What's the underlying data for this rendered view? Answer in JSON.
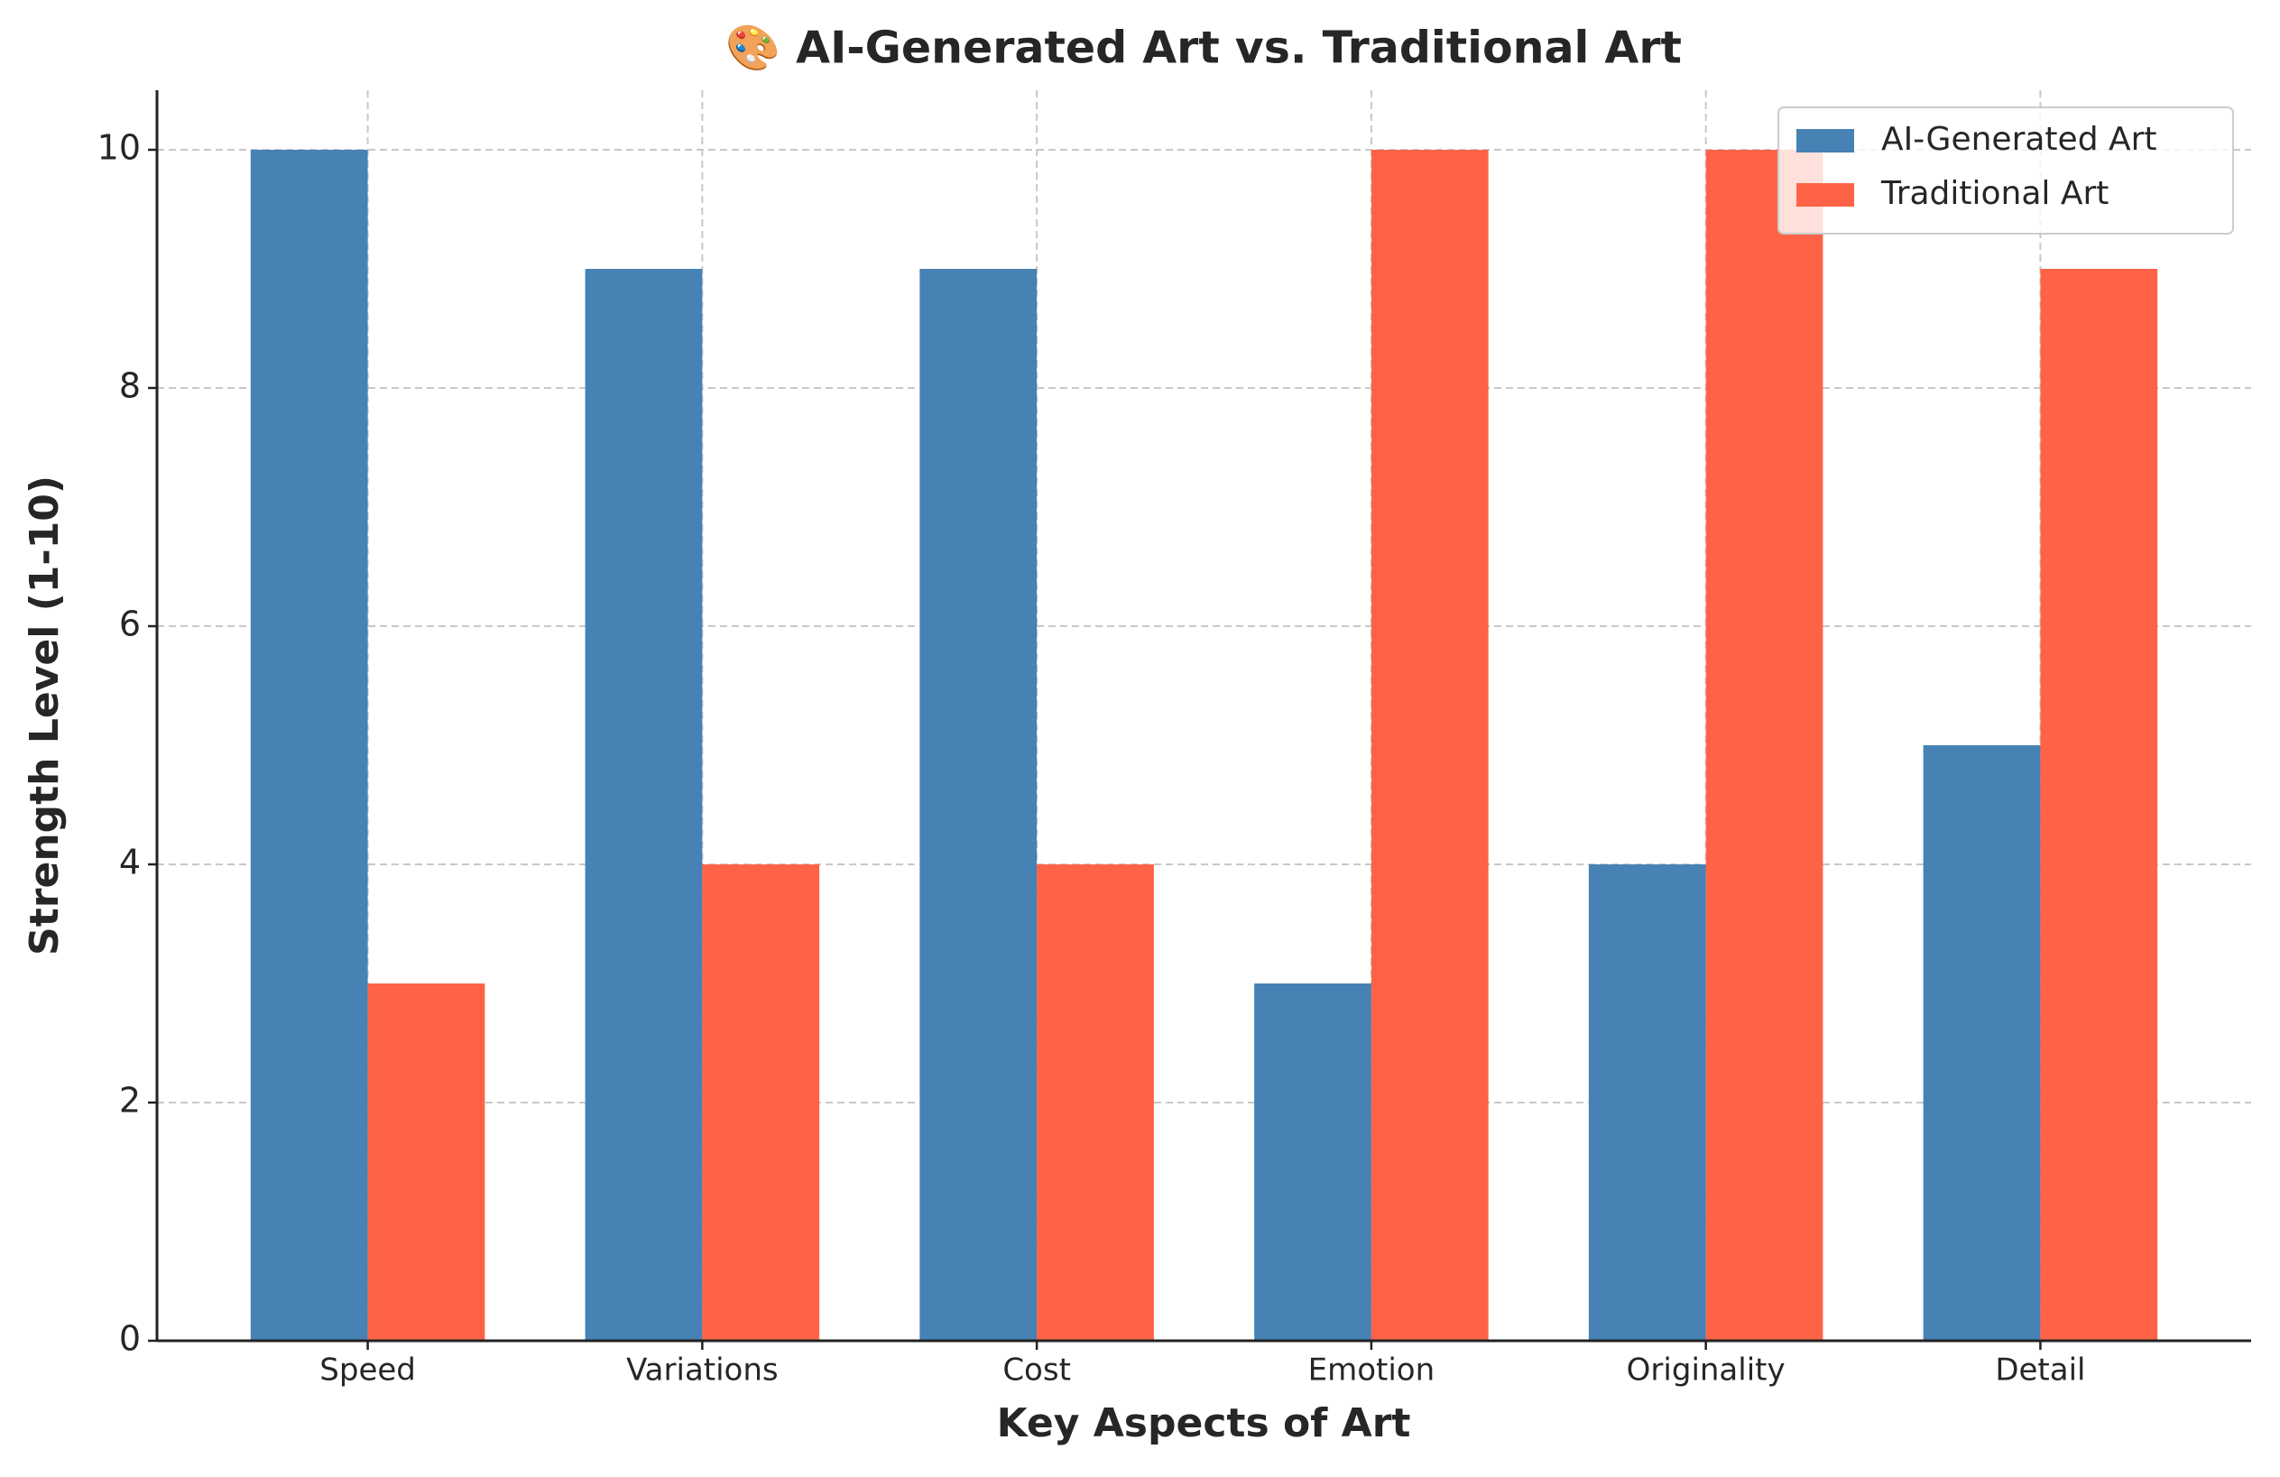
{
  "chart_data": {
    "type": "bar",
    "title": "🎨 AI-Generated Art vs. Traditional Art",
    "x_label": "Key Aspects of Art",
    "y_label": "Strength Level (1-10)",
    "categories": [
      "Speed",
      "Variations",
      "Cost",
      "Emotion",
      "Originality",
      "Detail"
    ],
    "series": [
      {
        "name": "AI-Generated Art",
        "color": "#4682b4",
        "values": [
          10,
          9,
          9,
          3,
          4,
          5
        ]
      },
      {
        "name": "Traditional Art",
        "color": "#ff6347",
        "values": [
          3,
          4,
          4,
          10,
          10,
          9
        ]
      }
    ],
    "ylim": [
      0,
      10.5
    ],
    "yticks": [
      0,
      2,
      4,
      6,
      8,
      10
    ],
    "grid": true,
    "legend": "upper right"
  }
}
